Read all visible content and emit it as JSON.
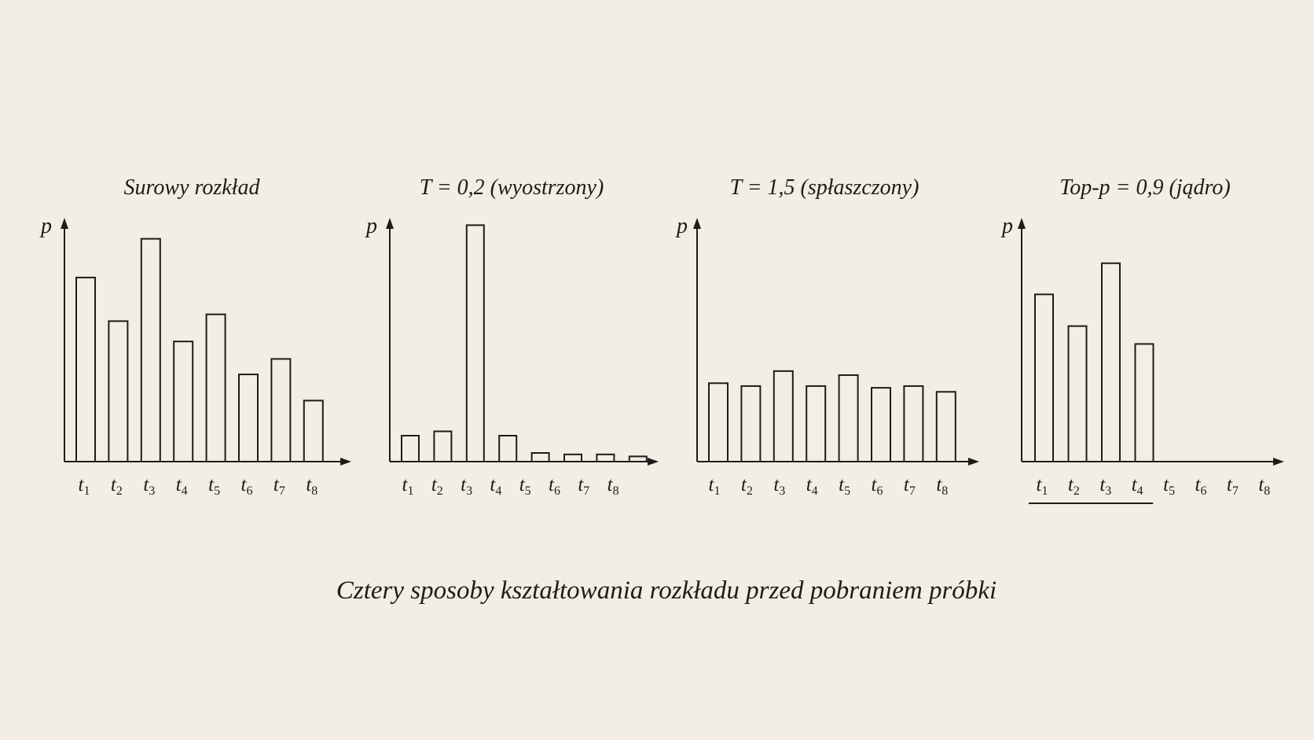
{
  "caption": "Cztery sposoby kształtowania rozkładu przed pobraniem próbki",
  "chart_data": [
    {
      "type": "bar",
      "title": "Surowy rozkład",
      "ylabel": "p",
      "xlabel": "",
      "categories": [
        "t1",
        "t2",
        "t3",
        "t4",
        "t5",
        "t6",
        "t7",
        "t8"
      ],
      "tick_labels": [
        {
          "base": "t",
          "sub": "1"
        },
        {
          "base": "t",
          "sub": "2"
        },
        {
          "base": "t",
          "sub": "3"
        },
        {
          "base": "t",
          "sub": "4"
        },
        {
          "base": "t",
          "sub": "5"
        },
        {
          "base": "t",
          "sub": "6"
        },
        {
          "base": "t",
          "sub": "7"
        },
        {
          "base": "t",
          "sub": "8"
        }
      ],
      "values": [
        0.19,
        0.145,
        0.23,
        0.124,
        0.152,
        0.09,
        0.106,
        0.063
      ],
      "ylim": [
        0,
        0.25
      ],
      "grid": false,
      "legend": "none"
    },
    {
      "type": "bar",
      "title": "T = 0,2 (wyostrzony)",
      "ylabel": "p",
      "xlabel": "",
      "categories": [
        "t1",
        "t2",
        "t3",
        "t4",
        "t5",
        "t6",
        "t7",
        "t8"
      ],
      "tick_labels": [
        {
          "base": "t",
          "sub": "1"
        },
        {
          "base": "t",
          "sub": "2"
        },
        {
          "base": "t",
          "sub": "3"
        },
        {
          "base": "t",
          "sub": "4"
        },
        {
          "base": "t",
          "sub": "5"
        },
        {
          "base": "t",
          "sub": "6"
        },
        {
          "base": "t",
          "sub": "7"
        },
        {
          "base": "t",
          "sub": "8"
        }
      ],
      "values": [
        0.09,
        0.105,
        0.82,
        0.09,
        0.03,
        0.025,
        0.025,
        0.018
      ],
      "ylim": [
        0,
        0.84
      ],
      "grid": false,
      "legend": "none"
    },
    {
      "type": "bar",
      "title": "T = 1,5 (spłaszczony)",
      "ylabel": "p",
      "xlabel": "",
      "categories": [
        "t1",
        "t2",
        "t3",
        "t4",
        "t5",
        "t6",
        "t7",
        "t8"
      ],
      "tick_labels": [
        {
          "base": "t",
          "sub": "1"
        },
        {
          "base": "t",
          "sub": "2"
        },
        {
          "base": "t",
          "sub": "3"
        },
        {
          "base": "t",
          "sub": "4"
        },
        {
          "base": "t",
          "sub": "5"
        },
        {
          "base": "t",
          "sub": "6"
        },
        {
          "base": "t",
          "sub": "7"
        },
        {
          "base": "t",
          "sub": "8"
        }
      ],
      "values": [
        0.136,
        0.131,
        0.157,
        0.131,
        0.15,
        0.128,
        0.131,
        0.121
      ],
      "ylim": [
        0,
        0.42
      ],
      "grid": false,
      "legend": "none"
    },
    {
      "type": "bar",
      "title": "Top-p = 0,9 (jądro)",
      "ylabel": "p",
      "xlabel": "",
      "categories": [
        "t1",
        "t2",
        "t3",
        "t4",
        "t5",
        "t6",
        "t7",
        "t8"
      ],
      "tick_labels": [
        {
          "base": "t",
          "sub": "1"
        },
        {
          "base": "t",
          "sub": "2"
        },
        {
          "base": "t",
          "sub": "3"
        },
        {
          "base": "t",
          "sub": "4"
        },
        {
          "base": "t",
          "sub": "5"
        },
        {
          "base": "t",
          "sub": "6"
        },
        {
          "base": "t",
          "sub": "7"
        },
        {
          "base": "t",
          "sub": "8"
        }
      ],
      "values": [
        0.29,
        0.235,
        0.344,
        0.204,
        0,
        0,
        0,
        0
      ],
      "ylim": [
        0,
        0.42
      ],
      "nucleus": [
        "t1",
        "t2",
        "t3",
        "t4"
      ],
      "grid": false,
      "legend": "none"
    }
  ]
}
